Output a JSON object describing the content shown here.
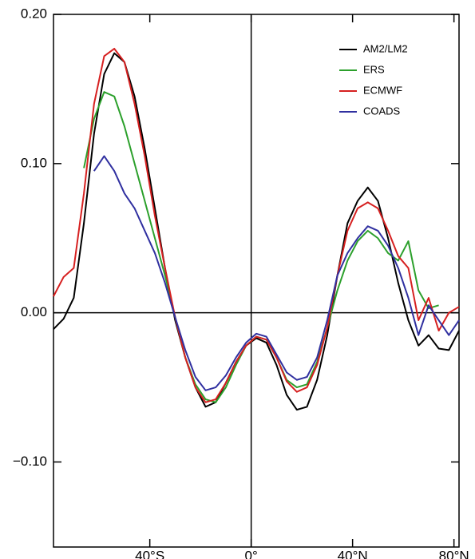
{
  "chart_data": {
    "type": "line",
    "x": [
      -78,
      -74,
      -70,
      -66,
      -62,
      -58,
      -54,
      -50,
      -46,
      -42,
      -38,
      -34,
      -30,
      -26,
      -22,
      -18,
      -14,
      -10,
      -6,
      -2,
      2,
      6,
      10,
      14,
      18,
      22,
      26,
      30,
      34,
      38,
      42,
      46,
      50,
      54,
      58,
      62,
      66,
      70,
      74,
      78,
      82
    ],
    "series": [
      {
        "name": "AM2/LM2",
        "color": "#000000",
        "values": [
          -0.011,
          -0.004,
          0.01,
          0.06,
          0.12,
          0.16,
          0.174,
          0.168,
          0.145,
          0.11,
          0.07,
          0.03,
          -0.005,
          -0.03,
          -0.05,
          -0.063,
          -0.06,
          -0.047,
          -0.033,
          -0.022,
          -0.017,
          -0.02,
          -0.035,
          -0.055,
          -0.065,
          -0.063,
          -0.045,
          -0.015,
          0.025,
          0.06,
          0.075,
          0.084,
          0.075,
          0.05,
          0.02,
          -0.005,
          -0.022,
          -0.015,
          -0.024,
          -0.025,
          -0.012
        ]
      },
      {
        "name": "ERS",
        "color": "#2ca02c",
        "values": [
          null,
          null,
          null,
          0.097,
          0.13,
          0.148,
          0.145,
          0.125,
          0.1,
          0.075,
          0.05,
          0.025,
          -0.003,
          -0.03,
          -0.048,
          -0.058,
          -0.06,
          -0.05,
          -0.035,
          -0.022,
          -0.016,
          -0.018,
          -0.03,
          -0.045,
          -0.05,
          -0.048,
          -0.033,
          -0.01,
          0.015,
          0.035,
          0.048,
          0.055,
          0.05,
          0.04,
          0.035,
          0.048,
          0.015,
          0.003,
          0.005,
          null,
          null
        ]
      },
      {
        "name": "ECMWF",
        "color": "#d62020",
        "values": [
          0.011,
          0.024,
          0.03,
          0.08,
          0.14,
          0.172,
          0.177,
          0.168,
          0.14,
          0.105,
          0.065,
          0.03,
          -0.003,
          -0.03,
          -0.05,
          -0.06,
          -0.058,
          -0.047,
          -0.033,
          -0.022,
          -0.016,
          -0.018,
          -0.03,
          -0.046,
          -0.053,
          -0.05,
          -0.035,
          -0.01,
          0.025,
          0.055,
          0.07,
          0.074,
          0.07,
          0.055,
          0.038,
          0.03,
          -0.005,
          0.01,
          -0.012,
          0,
          0.004
        ]
      },
      {
        "name": "COADS",
        "color": "#3030a0",
        "values": [
          null,
          null,
          null,
          null,
          0.095,
          0.105,
          0.095,
          0.08,
          0.07,
          0.055,
          0.04,
          0.02,
          -0.003,
          -0.025,
          -0.043,
          -0.052,
          -0.05,
          -0.042,
          -0.03,
          -0.02,
          -0.014,
          -0.016,
          -0.028,
          -0.04,
          -0.045,
          -0.043,
          -0.03,
          -0.005,
          0.025,
          0.04,
          0.05,
          0.058,
          0.055,
          0.045,
          0.03,
          0.01,
          -0.015,
          0.005,
          -0.005,
          -0.015,
          -0.005
        ]
      }
    ],
    "xlim": [
      -78,
      82
    ],
    "ylim": [
      -0.157,
      0.2
    ],
    "xticks": [
      {
        "value": -40,
        "label": "40°S"
      },
      {
        "value": 0,
        "label": "0°"
      },
      {
        "value": 40,
        "label": "40°N"
      },
      {
        "value": 80,
        "label": "80°N"
      }
    ],
    "yticks": [
      {
        "value": 0.2,
        "label": "0.20"
      },
      {
        "value": 0.1,
        "label": "0.10"
      },
      {
        "value": 0,
        "label": "0.00"
      },
      {
        "value": -0.1,
        "label": "−0.10"
      }
    ],
    "legend": "upper right"
  }
}
